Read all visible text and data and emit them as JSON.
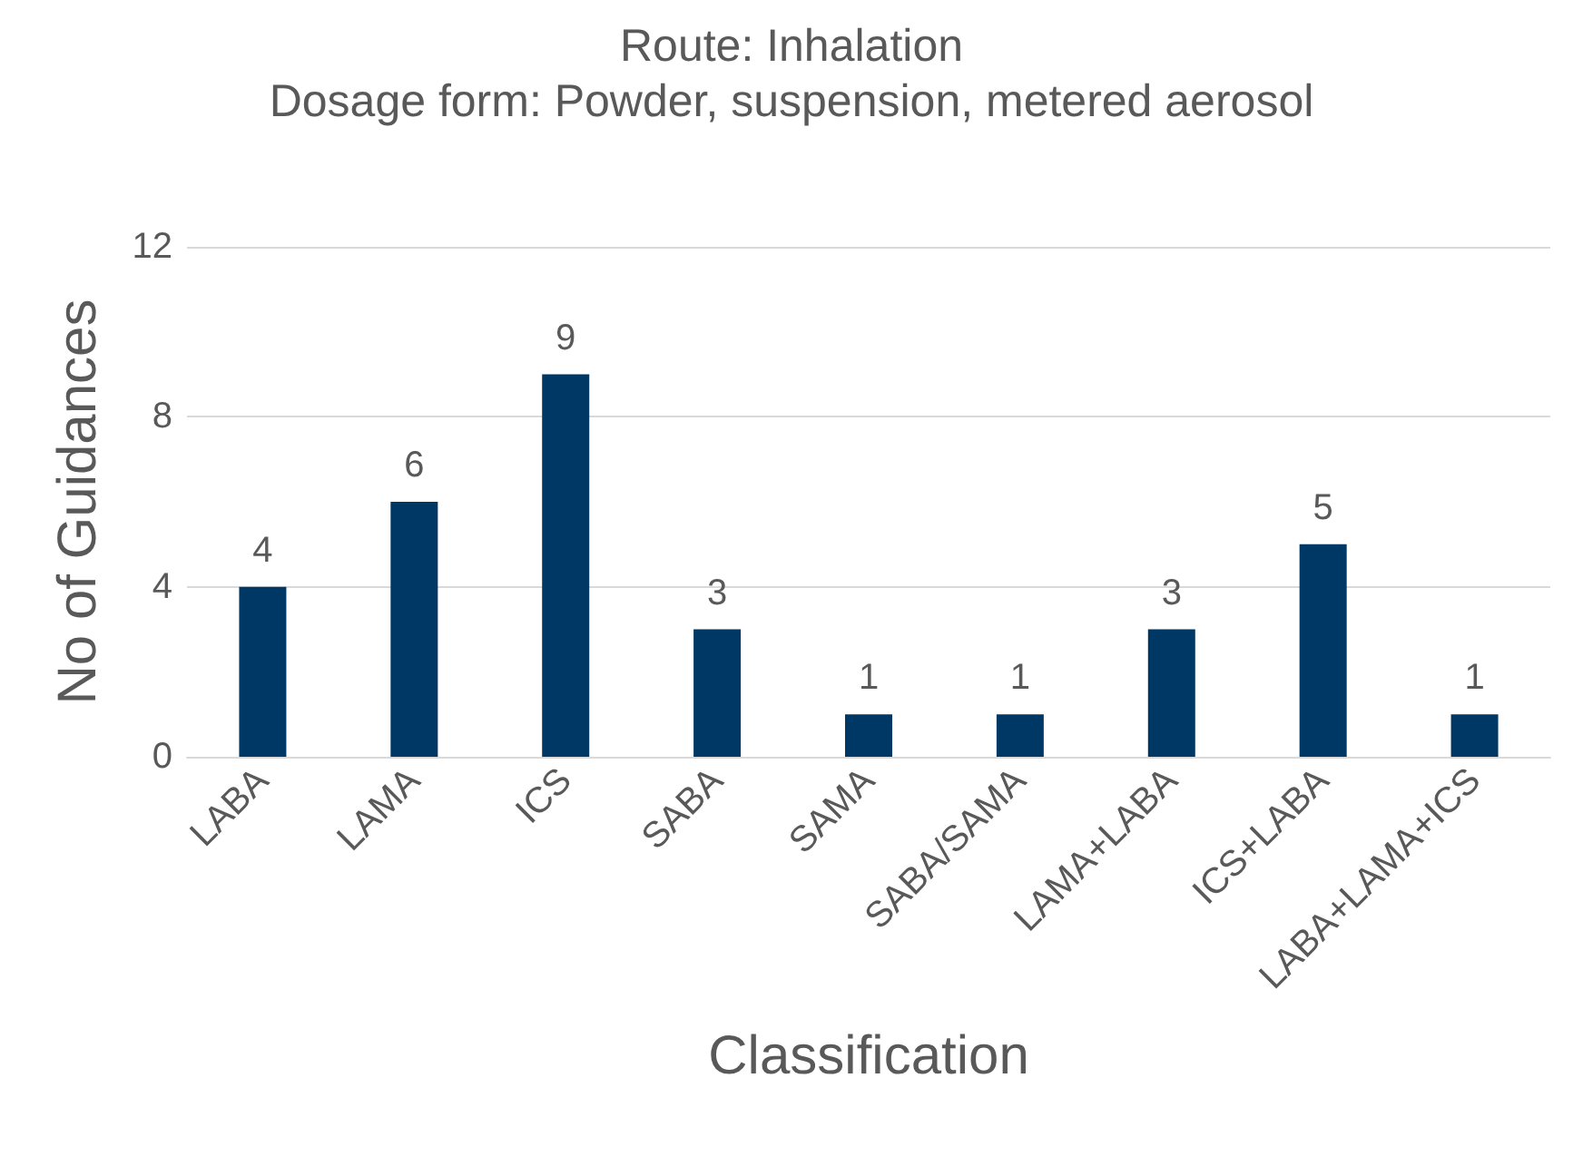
{
  "chart_data": {
    "type": "bar",
    "title": "Route: Inhalation",
    "subtitle": "Dosage form: Powder, suspension, metered aerosol",
    "xlabel": "Classification",
    "ylabel": "No of Guidances",
    "categories": [
      "LABA",
      "LAMA",
      "ICS",
      "SABA",
      "SAMA",
      "SABA/SAMA",
      "LAMA+LABA",
      "ICS+LABA",
      "LABA+LAMA+ICS"
    ],
    "values": [
      4,
      6,
      9,
      3,
      1,
      1,
      3,
      5,
      1
    ],
    "color": "#003865",
    "ylim": [
      0,
      12
    ],
    "yticks": [
      0,
      4,
      8,
      12
    ],
    "grid": "y",
    "data_labels": true
  }
}
